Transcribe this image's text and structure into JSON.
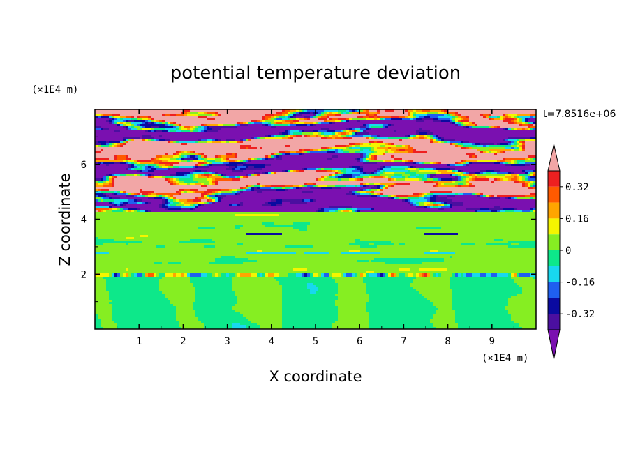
{
  "chart_data": {
    "type": "heatmap",
    "title": "potential temperature deviation",
    "xlabel": "X coordinate",
    "ylabel": "Z coordinate",
    "x_unit": "(×1E4 m)",
    "y_unit": "(×1E4 m)",
    "time_label": "t=7.8516e+06",
    "xlim": [
      0,
      10
    ],
    "ylim": [
      0,
      8
    ],
    "x_ticks": [
      "1",
      "2",
      "3",
      "4",
      "5",
      "6",
      "7",
      "8",
      "9"
    ],
    "y_ticks": [
      "2",
      "4",
      "6"
    ],
    "colorbar": {
      "levels": [
        -0.48,
        -0.4,
        -0.32,
        -0.24,
        -0.16,
        -0.08,
        0,
        0.08,
        0.16,
        0.24,
        0.32,
        0.4,
        0.48
      ],
      "tick_labels": [
        "0.32",
        "0.16",
        "0",
        "-0.16",
        "-0.32"
      ],
      "tick_values": [
        0.32,
        0.16,
        0,
        -0.16,
        -0.32
      ],
      "colors": [
        "#7a10b0",
        "#4b0fa0",
        "#0a0aa0",
        "#1f5ff0",
        "#18d8ef",
        "#0de88a",
        "#86ee22",
        "#f5f500",
        "#ffa500",
        "#ff5a00",
        "#ee2020",
        "#f2a6a6"
      ]
    },
    "bands": [
      {
        "z_range": [
          0,
          2.0
        ],
        "description_of_field": "mostly green/light-green with cyan dip"
      },
      {
        "z_range": [
          2.0,
          4.3
        ],
        "description_of_field": "light-green with faint layers"
      },
      {
        "z_range": [
          4.3,
          8
        ],
        "description_of_field": "alternating purple and pink layers with red/yellow/blue edges"
      }
    ]
  }
}
